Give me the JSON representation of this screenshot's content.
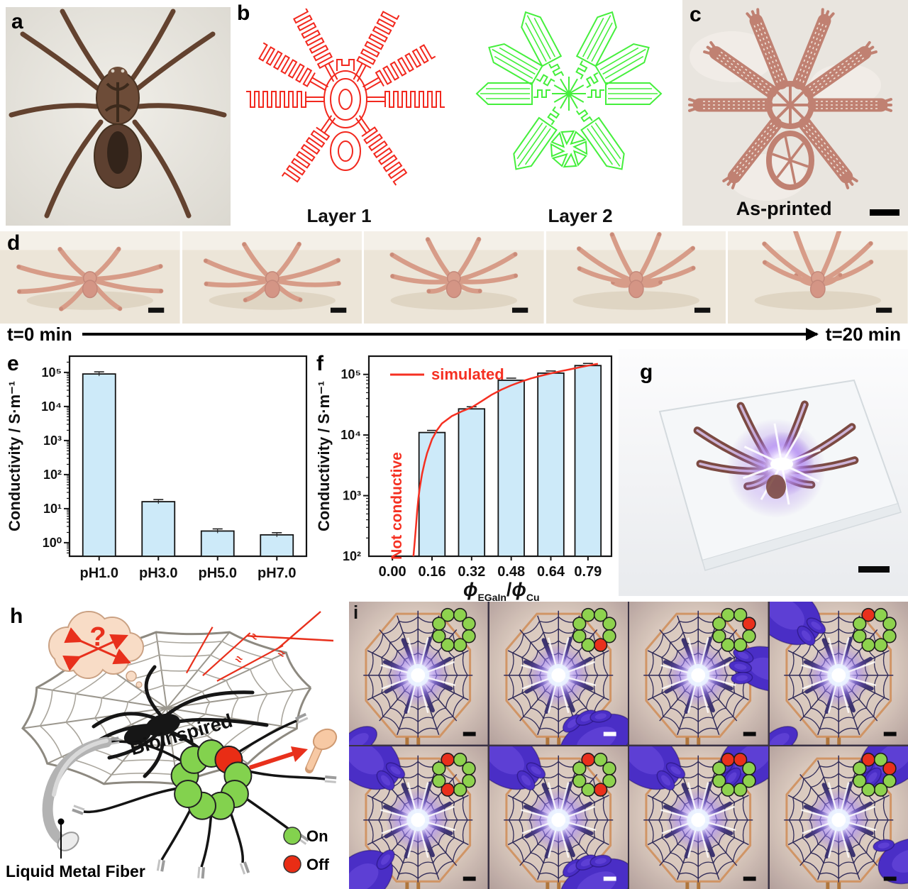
{
  "panels": {
    "a": {
      "letter": "a"
    },
    "b": {
      "letter": "b",
      "layers": [
        {
          "label": "Layer 1",
          "color": "#f2281e"
        },
        {
          "label": "Layer 2",
          "color": "#45ef3c"
        }
      ]
    },
    "c": {
      "letter": "c",
      "caption": "As-printed"
    },
    "d": {
      "letter": "d",
      "timeline_start": "t=0 min",
      "timeline_end": "t=20 min",
      "frame_count": 5
    },
    "e": {
      "letter": "e"
    },
    "f": {
      "letter": "f"
    },
    "g": {
      "letter": "g"
    },
    "h": {
      "letter": "h",
      "bioinspired": "Bioinspired",
      "fiber_label": "Liquid Metal Fiber",
      "question_mark": "?",
      "legend": [
        {
          "label": "On",
          "color": "#83d24e"
        },
        {
          "label": "Off",
          "color": "#e92d15"
        }
      ]
    },
    "i": {
      "letter": "i",
      "led_colors": {
        "on": "#8ed24e",
        "off": "#e9301c"
      },
      "led_ring_positions_deg": [
        112.5,
        67.5,
        22.5,
        -22.5,
        -67.5,
        -112.5,
        -157.5,
        157.5
      ],
      "photos": [
        {
          "leds": [
            1,
            1,
            1,
            1,
            1,
            1,
            1,
            1
          ],
          "scalebar": "black",
          "gloves": [
            "bl-small"
          ]
        },
        {
          "leds": [
            1,
            1,
            1,
            1,
            0,
            1,
            1,
            1
          ],
          "scalebar": "white",
          "gloves": [
            "br-hand"
          ]
        },
        {
          "leds": [
            1,
            1,
            0,
            1,
            1,
            1,
            1,
            1
          ],
          "scalebar": "black",
          "gloves": [
            "r-hand"
          ]
        },
        {
          "leds": [
            0,
            1,
            1,
            1,
            1,
            1,
            1,
            1
          ],
          "scalebar": "black",
          "gloves": [
            "tl-hand",
            "bl-small"
          ]
        },
        {
          "leds": [
            0,
            1,
            1,
            1,
            1,
            0,
            1,
            1
          ],
          "scalebar": "black",
          "gloves": [
            "tl-hand",
            "bl-hand"
          ]
        },
        {
          "leds": [
            0,
            1,
            1,
            1,
            0,
            1,
            1,
            1
          ],
          "scalebar": "white",
          "gloves": [
            "tl-hand",
            "br-hand"
          ]
        },
        {
          "leds": [
            0,
            0,
            1,
            1,
            1,
            1,
            1,
            1
          ],
          "scalebar": "black",
          "gloves": [
            "tl-hand",
            "tr-hand"
          ]
        },
        {
          "leds": [
            0,
            1,
            0,
            1,
            1,
            1,
            1,
            1
          ],
          "scalebar": "black",
          "gloves": [
            "tr-hand",
            "rb-hand"
          ]
        }
      ]
    }
  },
  "chart_data": [
    {
      "id": "chart-e",
      "type": "bar",
      "log_y": true,
      "categories": [
        "pH1.0",
        "pH3.0",
        "pH5.0",
        "pH7.0"
      ],
      "values": [
        90000,
        16,
        2.2,
        1.7
      ],
      "title": "",
      "xlabel": "",
      "ylabel": "Conductivity / S·m⁻¹",
      "ylim": [
        0.4,
        300000
      ],
      "y_tick_decades": [
        0,
        1,
        2,
        3,
        4,
        5
      ],
      "bar_color": "#cdeaf9",
      "bar_edge": "#141414",
      "grid": false
    },
    {
      "id": "chart-f",
      "type": "bar+line",
      "log_y": true,
      "x_tick_labels": [
        "0.00",
        "0.16",
        "0.32",
        "0.48",
        "0.64",
        "0.79"
      ],
      "x_tick_values": [
        0.0,
        0.16,
        0.32,
        0.48,
        0.64,
        0.79
      ],
      "bars_x": [
        0.16,
        0.32,
        0.48,
        0.64,
        0.79
      ],
      "bars_values": [
        11000,
        27000,
        80000,
        105000,
        140000
      ],
      "bar_width": 0.105,
      "xlim": [
        -0.095,
        0.885
      ],
      "ylim": [
        100,
        200000
      ],
      "y_tick_decades": [
        2,
        3,
        4,
        5
      ],
      "ylabel": "Conductivity / S·m⁻¹",
      "xlabel": "ϕEGaIn/ϕCu",
      "xlabel_parts": {
        "sym": "ϕ",
        "sub1": "EGaIn",
        "sep": "/",
        "sub2": "Cu"
      },
      "legend_label": "simulated",
      "annotation": "Not conductive",
      "line_color": "#f53022",
      "bar_color": "#cdeaf9",
      "bar_edge": "#141414",
      "curve_x": [
        0.085,
        0.09,
        0.095,
        0.1,
        0.105,
        0.11,
        0.12,
        0.13,
        0.14,
        0.16,
        0.18,
        0.2,
        0.24,
        0.28,
        0.32,
        0.36,
        0.4,
        0.44,
        0.48,
        0.52,
        0.56,
        0.6,
        0.64,
        0.68,
        0.72,
        0.76,
        0.8,
        0.83
      ],
      "curve_y": [
        100,
        170,
        300,
        550,
        900,
        1300,
        2300,
        3500,
        5000,
        8500,
        12000,
        15500,
        20500,
        24500,
        28500,
        36000,
        46000,
        56000,
        66000,
        76000,
        86000,
        95000,
        104000,
        113000,
        122000,
        132000,
        142000,
        150000
      ]
    }
  ]
}
